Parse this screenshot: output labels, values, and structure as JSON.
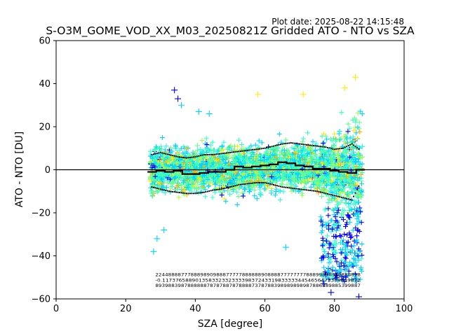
{
  "plot_date": "Plot date: 2025-08-22 14:15:48",
  "chart_data": {
    "type": "scatter",
    "title": "S-O3M_GOME_VOD_XX_M03_20250821Z Gridded ATO - NTO vs SZA",
    "xlabel": "SZA [degree]",
    "ylabel": "ATO - NTO [DU]",
    "xlim": [
      0,
      100
    ],
    "ylim": [
      -60,
      60
    ],
    "x_ticks": [
      0,
      20,
      40,
      60,
      80,
      100
    ],
    "y_ticks": [
      -60,
      -40,
      -20,
      0,
      20,
      40,
      60
    ],
    "x_tick_labels": [
      "0",
      "20",
      "40",
      "60",
      "80",
      "100"
    ],
    "y_tick_labels": [
      "−60",
      "−40",
      "−20",
      "0",
      "20",
      "40",
      "60"
    ],
    "grid": false,
    "legend": "none",
    "reference_line_y": 0,
    "marker": "+",
    "point_colors": [
      "#0000ff",
      "#00d4ff",
      "#33ffcc",
      "#66ff88",
      "#aaff44",
      "#ffee00",
      "#ffaa00"
    ],
    "scatter_extent": {
      "sza_min": 27,
      "sza_max": 88,
      "points": [
        {
          "x": 28,
          "y": -38
        },
        {
          "x": 29,
          "y": -32
        },
        {
          "x": 31,
          "y": -28
        },
        {
          "x": 34,
          "y": 37
        },
        {
          "x": 35,
          "y": 33
        },
        {
          "x": 36,
          "y": 30
        },
        {
          "x": 41,
          "y": 27
        },
        {
          "x": 44,
          "y": 26
        },
        {
          "x": 58,
          "y": 35
        },
        {
          "x": 66,
          "y": -36
        },
        {
          "x": 71,
          "y": 35
        },
        {
          "x": 77,
          "y": -53
        },
        {
          "x": 79,
          "y": -57
        },
        {
          "x": 83,
          "y": 38
        },
        {
          "x": 86,
          "y": 43
        },
        {
          "x": 87,
          "y": -59
        }
      ]
    },
    "series": [
      {
        "x": [
          27.5,
          30,
          32.5,
          35,
          37.5,
          40,
          42.5,
          45,
          47.5,
          50,
          52.5,
          55,
          57.5,
          60,
          62.5,
          65,
          67.5,
          70,
          72.5,
          75,
          77.5,
          80,
          82.5,
          85,
          87.5
        ],
        "y": [
          -1,
          -0.5,
          -1,
          -0.5,
          -2,
          -2,
          -1.5,
          -1,
          -1,
          0,
          1.5,
          1,
          1.5,
          2,
          2.5,
          3.5,
          3,
          2,
          1.5,
          0.5,
          0.5,
          -0.5,
          -1,
          -1.5,
          0
        ]
      },
      {
        "x": [
          27.5,
          30,
          32.5,
          35,
          37.5,
          40,
          42.5,
          45,
          47.5,
          50,
          52.5,
          55,
          57.5,
          60,
          62.5,
          65,
          67.5,
          70,
          72.5,
          75,
          77.5,
          80,
          82.5,
          85,
          87.5
        ],
        "y": [
          7,
          8,
          7,
          6,
          5.5,
          6,
          7,
          7,
          7.5,
          8,
          8.5,
          9,
          9.5,
          10,
          11,
          12,
          12.5,
          12,
          11.5,
          11,
          10.5,
          9.5,
          10,
          12,
          9
        ]
      },
      {
        "x": [
          27.5,
          30,
          32.5,
          35,
          37.5,
          40,
          42.5,
          45,
          47.5,
          50,
          52.5,
          55,
          57.5,
          60,
          62.5,
          65,
          67.5,
          70,
          72.5,
          75,
          77.5,
          80,
          82.5,
          85,
          87.5
        ],
        "y": [
          -8,
          -9,
          -10,
          -10.5,
          -11,
          -11,
          -10.5,
          -9.5,
          -9,
          -8,
          -7,
          -6.5,
          -6,
          -6,
          -7,
          -8,
          -8.5,
          -9,
          -9.5,
          -10,
          -11,
          -12,
          -13,
          -14,
          -6
        ]
      }
    ],
    "annotations": {
      "row1": "2244888877788898909888777778888889088887777777788899898989888898",
      "row2": "-0.117376588901358332332333398372433198333334454656473338849872",
      "row3": "8939883987888888787878878788887378788398989898987886889885399887"
    }
  }
}
